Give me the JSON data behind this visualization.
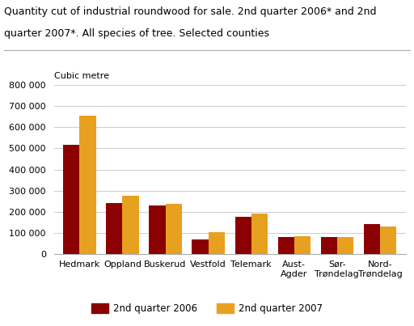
{
  "title_line1": "Quantity cut of industrial roundwood for sale. 2nd quarter 2006* and 2nd",
  "title_line2": "quarter 2007*. All species of tree. Selected counties",
  "ylabel": "Cubic metre",
  "categories": [
    "Hedmark",
    "Oppland",
    "Buskerud",
    "Vestfold",
    "Telemark",
    "Aust-\nAgder",
    "Sør-\nTrøndelag",
    "Nord-\nTrøndelag"
  ],
  "values_2006": [
    515000,
    243000,
    232000,
    70000,
    178000,
    80000,
    83000,
    143000
  ],
  "values_2007": [
    655000,
    275000,
    238000,
    105000,
    194000,
    87000,
    82000,
    130000
  ],
  "color_2006": "#8B0000",
  "color_2007": "#E8A020",
  "legend_2006": "2nd quarter 2006",
  "legend_2007": "2nd quarter 2007",
  "ylim": [
    0,
    800000
  ],
  "yticks": [
    0,
    100000,
    200000,
    300000,
    400000,
    500000,
    600000,
    700000,
    800000
  ],
  "bar_width": 0.38,
  "background_color": "#ffffff",
  "grid_color": "#cccccc"
}
